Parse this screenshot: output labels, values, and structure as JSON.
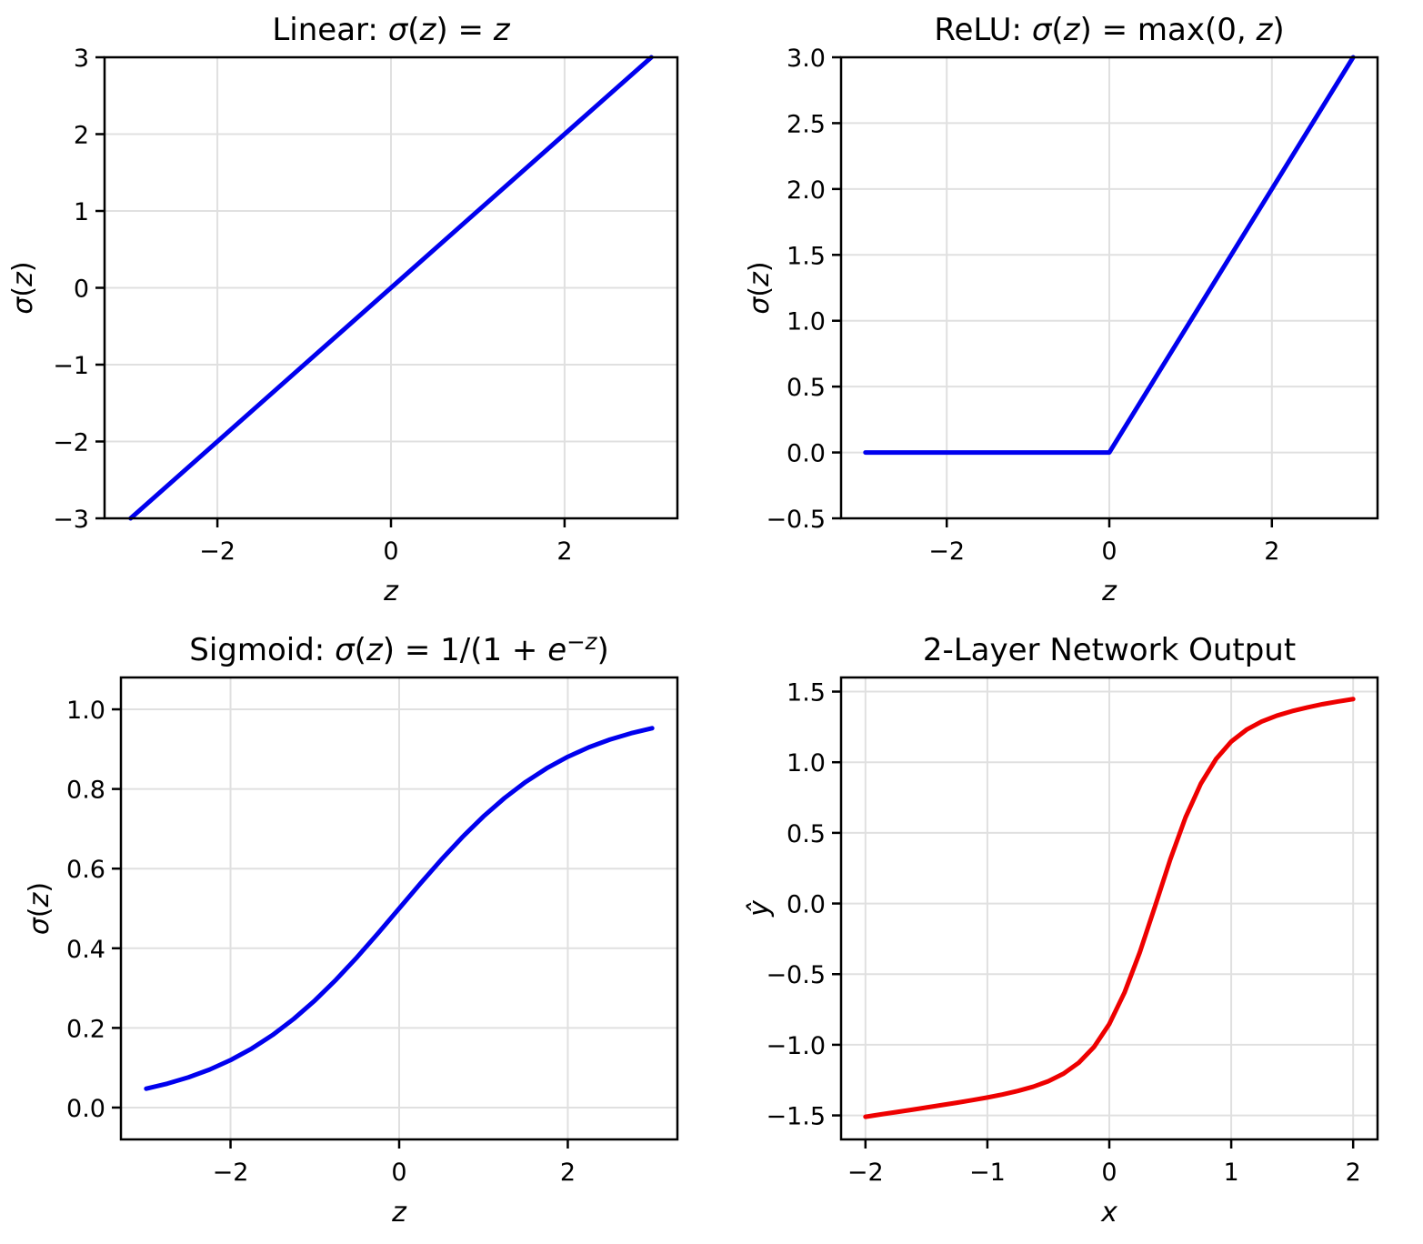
{
  "figure": {
    "background": "#ffffff",
    "grid_color": "#e0e0e0",
    "spine_color": "#000000",
    "tick_color": "#000000",
    "blue": "#0000ee",
    "red": "#ee0000"
  },
  "chart_data": [
    {
      "type": "line",
      "grid": true,
      "title_segments": [
        {
          "t": "Linear: "
        },
        {
          "t": "σ",
          "i": 1
        },
        {
          "t": "("
        },
        {
          "t": "z",
          "i": 1
        },
        {
          "t": ") = "
        },
        {
          "t": "z",
          "i": 1
        }
      ],
      "xlabel_segments": [
        {
          "t": "z",
          "i": 1
        }
      ],
      "ylabel_segments": [
        {
          "t": "σ",
          "i": 1
        },
        {
          "t": "("
        },
        {
          "t": "z",
          "i": 1
        },
        {
          "t": ")"
        }
      ],
      "xlim": [
        -3.3,
        3.3
      ],
      "ylim": [
        -3,
        3
      ],
      "xticks": {
        "values": [
          -2,
          0,
          2
        ],
        "labels": [
          "−2",
          "0",
          "2"
        ]
      },
      "yticks": {
        "values": [
          3,
          2,
          1,
          0,
          -1,
          -2,
          -3
        ],
        "labels": [
          "3",
          "2",
          "1",
          "0",
          "−1",
          "−2",
          "−3"
        ]
      },
      "series": [
        {
          "name": "linear",
          "color": "#0000ee",
          "linewidth": 5,
          "x": [
            -3,
            3
          ],
          "y": [
            -3,
            3
          ]
        }
      ]
    },
    {
      "type": "line",
      "grid": true,
      "title_segments": [
        {
          "t": "ReLU: "
        },
        {
          "t": "σ",
          "i": 1
        },
        {
          "t": "("
        },
        {
          "t": "z",
          "i": 1
        },
        {
          "t": ") = max(0, "
        },
        {
          "t": "z",
          "i": 1
        },
        {
          "t": ")"
        }
      ],
      "xlabel_segments": [
        {
          "t": "z",
          "i": 1
        }
      ],
      "ylabel_segments": [
        {
          "t": "σ",
          "i": 1
        },
        {
          "t": "("
        },
        {
          "t": "z",
          "i": 1
        },
        {
          "t": ")"
        }
      ],
      "xlim": [
        -3.3,
        3.3
      ],
      "ylim": [
        -0.5,
        3.0
      ],
      "xticks": {
        "values": [
          -2,
          0,
          2
        ],
        "labels": [
          "−2",
          "0",
          "2"
        ]
      },
      "yticks": {
        "values": [
          3.0,
          2.5,
          2.0,
          1.5,
          1.0,
          0.5,
          0.0,
          -0.5
        ],
        "labels": [
          "3.0",
          "2.5",
          "2.0",
          "1.5",
          "1.0",
          "0.5",
          "0.0",
          "−0.5"
        ]
      },
      "series": [
        {
          "name": "relu",
          "color": "#0000ee",
          "linewidth": 5,
          "x": [
            -3,
            0,
            3
          ],
          "y": [
            0,
            0,
            3
          ]
        }
      ]
    },
    {
      "type": "line",
      "grid": true,
      "title_segments": [
        {
          "t": "Sigmoid: "
        },
        {
          "t": "σ",
          "i": 1
        },
        {
          "t": "("
        },
        {
          "t": "z",
          "i": 1
        },
        {
          "t": ") = 1/(1 + "
        },
        {
          "t": "e",
          "i": 1
        },
        {
          "t": "−z",
          "i": 1,
          "sup": 1
        },
        {
          "t": ")"
        }
      ],
      "xlabel_segments": [
        {
          "t": "z",
          "i": 1
        }
      ],
      "ylabel_segments": [
        {
          "t": "σ",
          "i": 1
        },
        {
          "t": "("
        },
        {
          "t": "z",
          "i": 1
        },
        {
          "t": ")"
        }
      ],
      "xlim": [
        -3.3,
        3.3
      ],
      "ylim": [
        -0.08,
        1.08
      ],
      "xticks": {
        "values": [
          -2,
          0,
          2
        ],
        "labels": [
          "−2",
          "0",
          "2"
        ]
      },
      "yticks": {
        "values": [
          1.0,
          0.8,
          0.6,
          0.4,
          0.2,
          0.0
        ],
        "labels": [
          "1.0",
          "0.8",
          "0.6",
          "0.4",
          "0.2",
          "0.0"
        ]
      },
      "series": [
        {
          "name": "sigmoid",
          "color": "#0000ee",
          "linewidth": 5,
          "x": [
            -3,
            -2.75,
            -2.5,
            -2.25,
            -2,
            -1.75,
            -1.5,
            -1.25,
            -1,
            -0.75,
            -0.5,
            -0.25,
            0,
            0.25,
            0.5,
            0.75,
            1,
            1.25,
            1.5,
            1.75,
            2,
            2.25,
            2.5,
            2.75,
            3
          ],
          "y": [
            0.0474,
            0.0601,
            0.0759,
            0.0953,
            0.1192,
            0.148,
            0.1824,
            0.2227,
            0.2689,
            0.3208,
            0.3775,
            0.4378,
            0.5,
            0.5622,
            0.6225,
            0.6792,
            0.7311,
            0.7773,
            0.8176,
            0.852,
            0.8808,
            0.9047,
            0.9241,
            0.9399,
            0.9526
          ]
        }
      ]
    },
    {
      "type": "line",
      "grid": true,
      "title_segments": [
        {
          "t": "2-Layer Network Output"
        }
      ],
      "xlabel_segments": [
        {
          "t": "x",
          "i": 1
        }
      ],
      "ylabel_segments": [
        {
          "t": "ŷ",
          "i": 1
        }
      ],
      "xlim": [
        -2.2,
        2.2
      ],
      "ylim": [
        -1.67,
        1.6
      ],
      "xticks": {
        "values": [
          -2,
          -1,
          0,
          1,
          2
        ],
        "labels": [
          "−2",
          "−1",
          "0",
          "1",
          "2"
        ]
      },
      "yticks": {
        "values": [
          1.5,
          1.0,
          0.5,
          0.0,
          -0.5,
          -1.0,
          -1.5
        ],
        "labels": [
          "1.5",
          "1.0",
          "0.5",
          "0.0",
          "−0.5",
          "−1.0",
          "−1.5"
        ]
      },
      "series": [
        {
          "name": "network-output",
          "color": "#ee0000",
          "linewidth": 5,
          "x": [
            -2,
            -1.875,
            -1.75,
            -1.625,
            -1.5,
            -1.375,
            -1.25,
            -1.125,
            -1,
            -0.875,
            -0.75,
            -0.625,
            -0.5,
            -0.375,
            -0.25,
            -0.125,
            0,
            0.125,
            0.25,
            0.375,
            0.5,
            0.625,
            0.75,
            0.875,
            1,
            1.125,
            1.25,
            1.375,
            1.5,
            1.625,
            1.75,
            1.875,
            2
          ],
          "y": [
            -1.51,
            -1.493,
            -1.477,
            -1.461,
            -1.444,
            -1.427,
            -1.41,
            -1.392,
            -1.373,
            -1.352,
            -1.327,
            -1.297,
            -1.258,
            -1.204,
            -1.127,
            -1.015,
            -0.853,
            -0.63,
            -0.346,
            -0.02,
            0.312,
            0.609,
            0.847,
            1.022,
            1.146,
            1.23,
            1.288,
            1.33,
            1.362,
            1.388,
            1.411,
            1.43,
            1.447
          ]
        }
      ]
    }
  ]
}
